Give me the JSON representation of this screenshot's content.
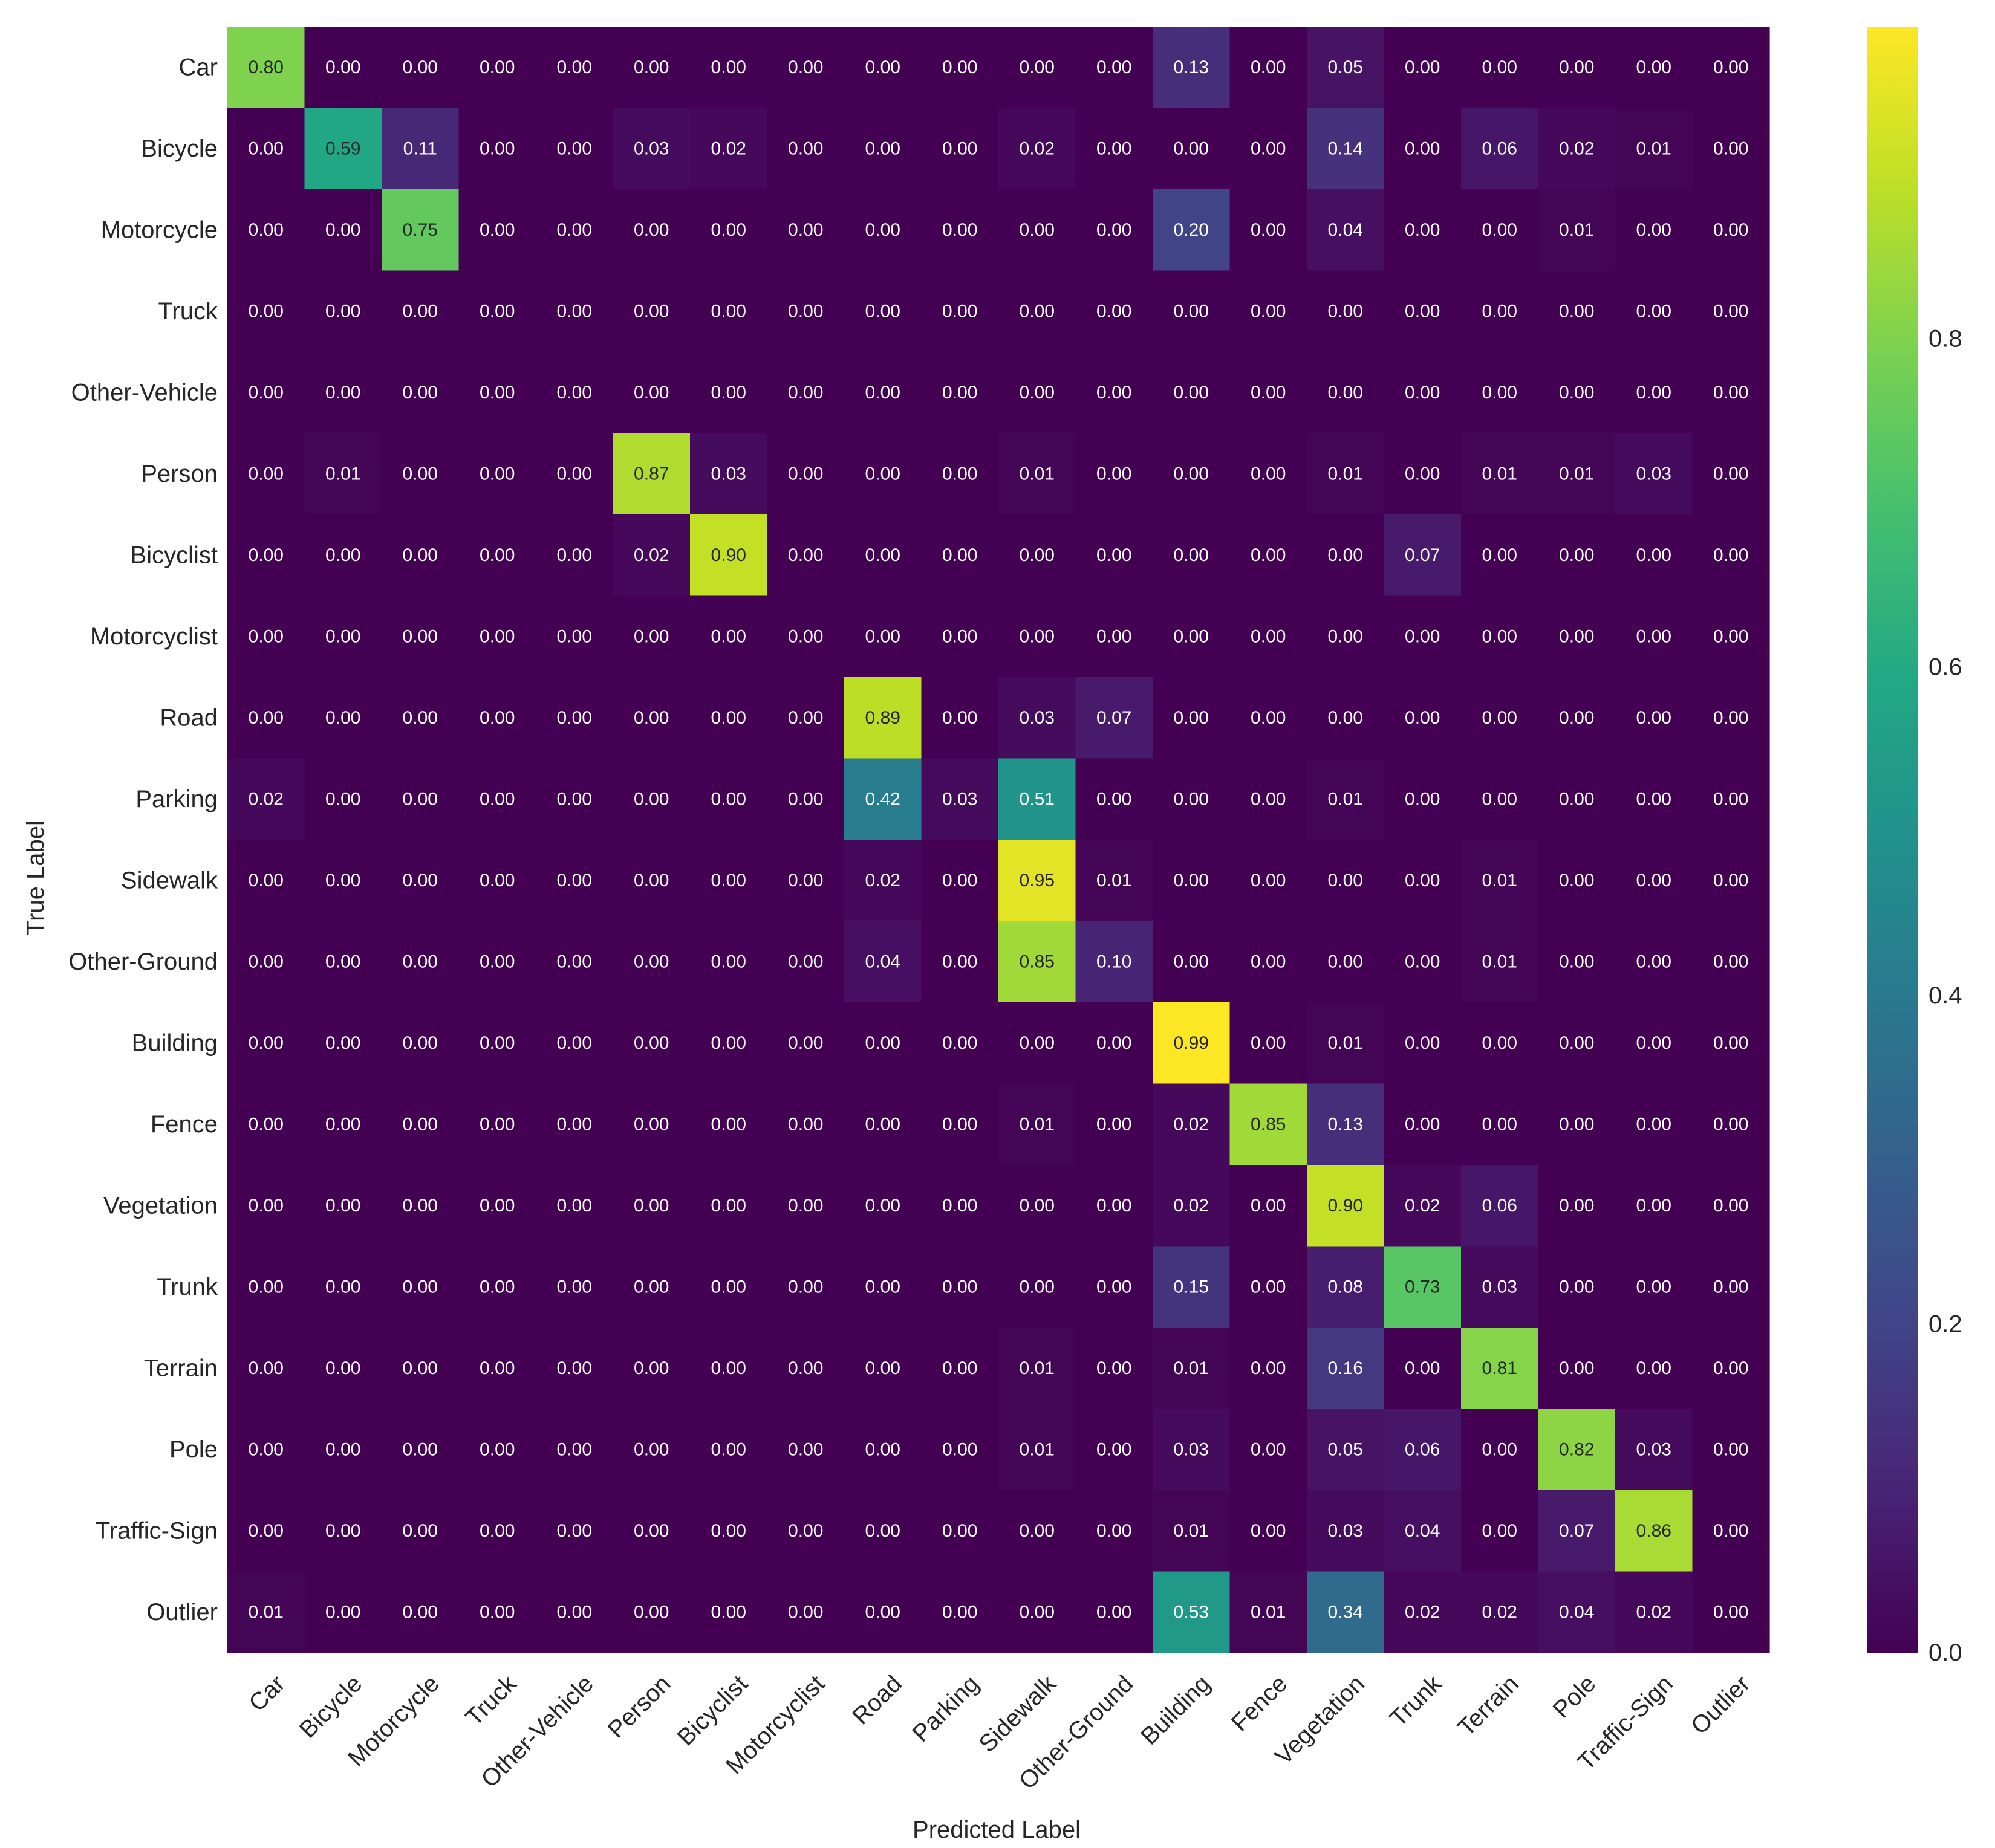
{
  "chart_data": {
    "type": "heatmap",
    "title": "",
    "xlabel": "Predicted Label",
    "ylabel": "True Label",
    "categories": [
      "Car",
      "Bicycle",
      "Motorcycle",
      "Truck",
      "Other-Vehicle",
      "Person",
      "Bicyclist",
      "Motorcyclist",
      "Road",
      "Parking",
      "Sidewalk",
      "Other-Ground",
      "Building",
      "Fence",
      "Vegetation",
      "Trunk",
      "Terrain",
      "Pole",
      "Traffic-Sign",
      "Outlier"
    ],
    "matrix": [
      [
        0.8,
        0.0,
        0.0,
        0.0,
        0.0,
        0.0,
        0.0,
        0.0,
        0.0,
        0.0,
        0.0,
        0.0,
        0.13,
        0.0,
        0.05,
        0.0,
        0.0,
        0.0,
        0.0,
        0.0
      ],
      [
        0.0,
        0.59,
        0.11,
        0.0,
        0.0,
        0.03,
        0.02,
        0.0,
        0.0,
        0.0,
        0.02,
        0.0,
        0.0,
        0.0,
        0.14,
        0.0,
        0.06,
        0.02,
        0.01,
        0.0
      ],
      [
        0.0,
        0.0,
        0.75,
        0.0,
        0.0,
        0.0,
        0.0,
        0.0,
        0.0,
        0.0,
        0.0,
        0.0,
        0.2,
        0.0,
        0.04,
        0.0,
        0.0,
        0.01,
        0.0,
        0.0
      ],
      [
        0.0,
        0.0,
        0.0,
        0.0,
        0.0,
        0.0,
        0.0,
        0.0,
        0.0,
        0.0,
        0.0,
        0.0,
        0.0,
        0.0,
        0.0,
        0.0,
        0.0,
        0.0,
        0.0,
        0.0
      ],
      [
        0.0,
        0.0,
        0.0,
        0.0,
        0.0,
        0.0,
        0.0,
        0.0,
        0.0,
        0.0,
        0.0,
        0.0,
        0.0,
        0.0,
        0.0,
        0.0,
        0.0,
        0.0,
        0.0,
        0.0
      ],
      [
        0.0,
        0.01,
        0.0,
        0.0,
        0.0,
        0.87,
        0.03,
        0.0,
        0.0,
        0.0,
        0.01,
        0.0,
        0.0,
        0.0,
        0.01,
        0.0,
        0.01,
        0.01,
        0.03,
        0.0
      ],
      [
        0.0,
        0.0,
        0.0,
        0.0,
        0.0,
        0.02,
        0.9,
        0.0,
        0.0,
        0.0,
        0.0,
        0.0,
        0.0,
        0.0,
        0.0,
        0.07,
        0.0,
        0.0,
        0.0,
        0.0
      ],
      [
        0.0,
        0.0,
        0.0,
        0.0,
        0.0,
        0.0,
        0.0,
        0.0,
        0.0,
        0.0,
        0.0,
        0.0,
        0.0,
        0.0,
        0.0,
        0.0,
        0.0,
        0.0,
        0.0,
        0.0
      ],
      [
        0.0,
        0.0,
        0.0,
        0.0,
        0.0,
        0.0,
        0.0,
        0.0,
        0.89,
        0.0,
        0.03,
        0.07,
        0.0,
        0.0,
        0.0,
        0.0,
        0.0,
        0.0,
        0.0,
        0.0
      ],
      [
        0.02,
        0.0,
        0.0,
        0.0,
        0.0,
        0.0,
        0.0,
        0.0,
        0.42,
        0.03,
        0.51,
        0.0,
        0.0,
        0.0,
        0.01,
        0.0,
        0.0,
        0.0,
        0.0,
        0.0
      ],
      [
        0.0,
        0.0,
        0.0,
        0.0,
        0.0,
        0.0,
        0.0,
        0.0,
        0.02,
        0.0,
        0.95,
        0.01,
        0.0,
        0.0,
        0.0,
        0.0,
        0.01,
        0.0,
        0.0,
        0.0
      ],
      [
        0.0,
        0.0,
        0.0,
        0.0,
        0.0,
        0.0,
        0.0,
        0.0,
        0.04,
        0.0,
        0.85,
        0.1,
        0.0,
        0.0,
        0.0,
        0.0,
        0.01,
        0.0,
        0.0,
        0.0
      ],
      [
        0.0,
        0.0,
        0.0,
        0.0,
        0.0,
        0.0,
        0.0,
        0.0,
        0.0,
        0.0,
        0.0,
        0.0,
        0.99,
        0.0,
        0.01,
        0.0,
        0.0,
        0.0,
        0.0,
        0.0
      ],
      [
        0.0,
        0.0,
        0.0,
        0.0,
        0.0,
        0.0,
        0.0,
        0.0,
        0.0,
        0.0,
        0.01,
        0.0,
        0.02,
        0.85,
        0.13,
        0.0,
        0.0,
        0.0,
        0.0,
        0.0
      ],
      [
        0.0,
        0.0,
        0.0,
        0.0,
        0.0,
        0.0,
        0.0,
        0.0,
        0.0,
        0.0,
        0.0,
        0.0,
        0.02,
        0.0,
        0.9,
        0.02,
        0.06,
        0.0,
        0.0,
        0.0
      ],
      [
        0.0,
        0.0,
        0.0,
        0.0,
        0.0,
        0.0,
        0.0,
        0.0,
        0.0,
        0.0,
        0.0,
        0.0,
        0.15,
        0.0,
        0.08,
        0.73,
        0.03,
        0.0,
        0.0,
        0.0
      ],
      [
        0.0,
        0.0,
        0.0,
        0.0,
        0.0,
        0.0,
        0.0,
        0.0,
        0.0,
        0.0,
        0.01,
        0.0,
        0.01,
        0.0,
        0.16,
        0.0,
        0.81,
        0.0,
        0.0,
        0.0
      ],
      [
        0.0,
        0.0,
        0.0,
        0.0,
        0.0,
        0.0,
        0.0,
        0.0,
        0.0,
        0.0,
        0.01,
        0.0,
        0.03,
        0.0,
        0.05,
        0.06,
        0.0,
        0.82,
        0.03,
        0.0
      ],
      [
        0.0,
        0.0,
        0.0,
        0.0,
        0.0,
        0.0,
        0.0,
        0.0,
        0.0,
        0.0,
        0.0,
        0.0,
        0.01,
        0.0,
        0.03,
        0.04,
        0.0,
        0.07,
        0.86,
        0.0
      ],
      [
        0.01,
        0.0,
        0.0,
        0.0,
        0.0,
        0.0,
        0.0,
        0.0,
        0.0,
        0.0,
        0.0,
        0.0,
        0.53,
        0.01,
        0.34,
        0.02,
        0.02,
        0.04,
        0.02,
        0.0
      ]
    ],
    "value_format": "0.00",
    "colormap": "viridis",
    "vmin": 0.0,
    "vmax": 0.99,
    "colorbar": {
      "ticks": [
        0.0,
        0.2,
        0.4,
        0.6,
        0.8
      ],
      "tick_labels": [
        "0.0",
        "0.2",
        "0.4",
        "0.6",
        "0.8"
      ]
    },
    "grid": false,
    "text_color_dark": "#262626",
    "text_color_light": "#ffffff"
  }
}
